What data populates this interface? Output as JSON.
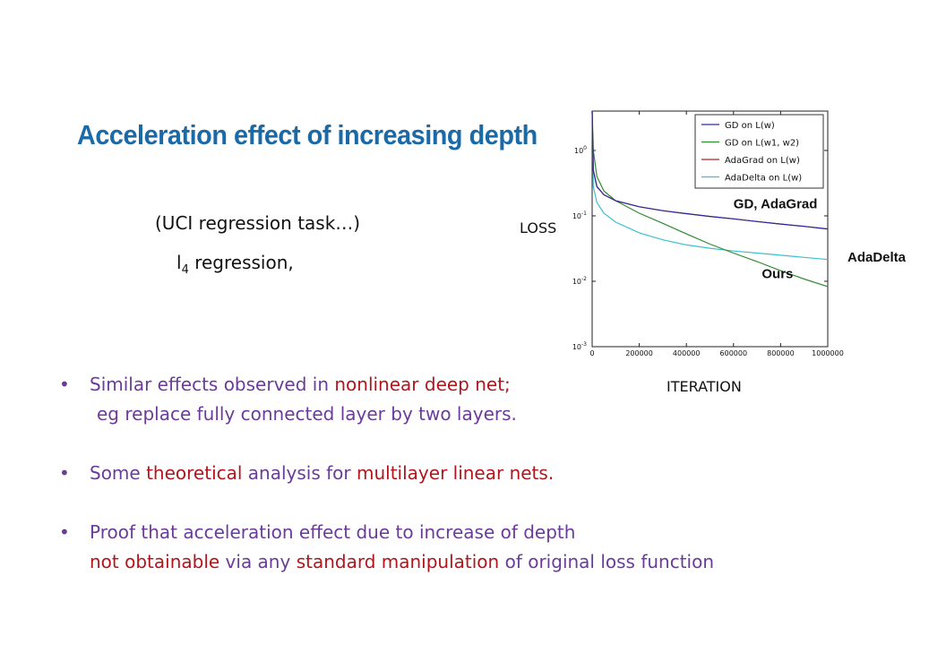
{
  "slide": {
    "title": "Acceleration effect of increasing depth",
    "subtitle": "(UCI regression task…)",
    "regression_prefix": "l",
    "regression_sub": "4",
    "regression_suffix": " regression,",
    "y_caption": "LOSS",
    "x_caption": "ITERATION",
    "bullets": [
      {
        "lines": [
          [
            {
              "text": "Similar effects observed in ",
              "hl": false
            },
            {
              "text": "nonlinear deep net;",
              "hl": true
            }
          ],
          [
            {
              "text": "eg replace fully connected layer by two layers.",
              "hl": false
            }
          ]
        ]
      },
      {
        "lines": [
          [
            {
              "text": "Some ",
              "hl": false
            },
            {
              "text": "theoretical",
              "hl": true
            },
            {
              "text": " analysis for ",
              "hl": false
            },
            {
              "text": "multilayer linear nets.",
              "hl": true
            }
          ]
        ]
      },
      {
        "lines": [
          [
            {
              "text": "Proof that acceleration effect due to increase of depth",
              "hl": false
            }
          ],
          [
            {
              "text": "not obtainable",
              "hl": true
            },
            {
              "text": " via any ",
              "hl": false
            },
            {
              "text": "standard manipulation",
              "hl": true
            },
            {
              "text": " of original loss function",
              "hl": false
            }
          ]
        ]
      }
    ]
  },
  "chart_data": {
    "type": "line",
    "y_scale": "log",
    "xlim": [
      0,
      1000000
    ],
    "ylim": [
      0.001,
      4
    ],
    "x_ticks": [
      {
        "value": 0,
        "label": "0"
      },
      {
        "value": 200000,
        "label": "200000"
      },
      {
        "value": 400000,
        "label": "400000"
      },
      {
        "value": 600000,
        "label": "600000"
      },
      {
        "value": 800000,
        "label": "800000"
      },
      {
        "value": 1000000,
        "label": "1000000"
      }
    ],
    "y_ticks": [
      {
        "value": 1,
        "base": "10",
        "exp": "0"
      },
      {
        "value": 0.1,
        "base": "10",
        "exp": "-1"
      },
      {
        "value": 0.01,
        "base": "10",
        "exp": "-2"
      },
      {
        "value": 0.001,
        "base": "10",
        "exp": "-3"
      }
    ],
    "legend_position": "top-right",
    "series": [
      {
        "name": "GD on L(w)",
        "color": "#2a2aa0",
        "x": [
          0,
          5000,
          20000,
          50000,
          100000,
          200000,
          300000,
          400000,
          500000,
          600000,
          700000,
          800000,
          900000,
          1000000
        ],
        "y": [
          4,
          0.5,
          0.28,
          0.21,
          0.17,
          0.138,
          0.12,
          0.108,
          0.098,
          0.09,
          0.082,
          0.075,
          0.069,
          0.063
        ]
      },
      {
        "name": "GD on L(w1, w2)",
        "color": "#2e8b2e",
        "x": [
          0,
          5000,
          20000,
          50000,
          100000,
          200000,
          300000,
          400000,
          500000,
          600000,
          700000,
          800000,
          900000,
          1000000
        ],
        "y": [
          4,
          1.0,
          0.4,
          0.24,
          0.17,
          0.11,
          0.077,
          0.053,
          0.037,
          0.027,
          0.02,
          0.0145,
          0.0108,
          0.0083
        ]
      },
      {
        "name": "AdaGrad on L(w)",
        "color": "#b8202a",
        "x": [
          0,
          5000,
          20000,
          50000,
          100000,
          200000,
          300000,
          400000,
          500000,
          600000,
          700000,
          800000,
          900000,
          1000000
        ],
        "y": [
          4,
          0.5,
          0.28,
          0.21,
          0.17,
          0.138,
          0.12,
          0.108,
          0.098,
          0.09,
          0.082,
          0.075,
          0.069,
          0.063
        ]
      },
      {
        "name": "AdaDelta on L(w)",
        "color": "#3cc0d0",
        "x": [
          0,
          5000,
          20000,
          50000,
          100000,
          200000,
          300000,
          400000,
          500000,
          600000,
          700000,
          800000,
          900000,
          1000000
        ],
        "y": [
          4,
          0.28,
          0.16,
          0.11,
          0.08,
          0.055,
          0.043,
          0.036,
          0.032,
          0.029,
          0.027,
          0.025,
          0.0232,
          0.0215
        ]
      }
    ],
    "annotations": [
      {
        "text": "GD, AdaGrad",
        "x": 600000,
        "y": 0.13
      },
      {
        "text": "Ours",
        "x": 720000,
        "y": 0.0112
      }
    ],
    "outside_annotations": [
      "AdaDelta"
    ]
  }
}
